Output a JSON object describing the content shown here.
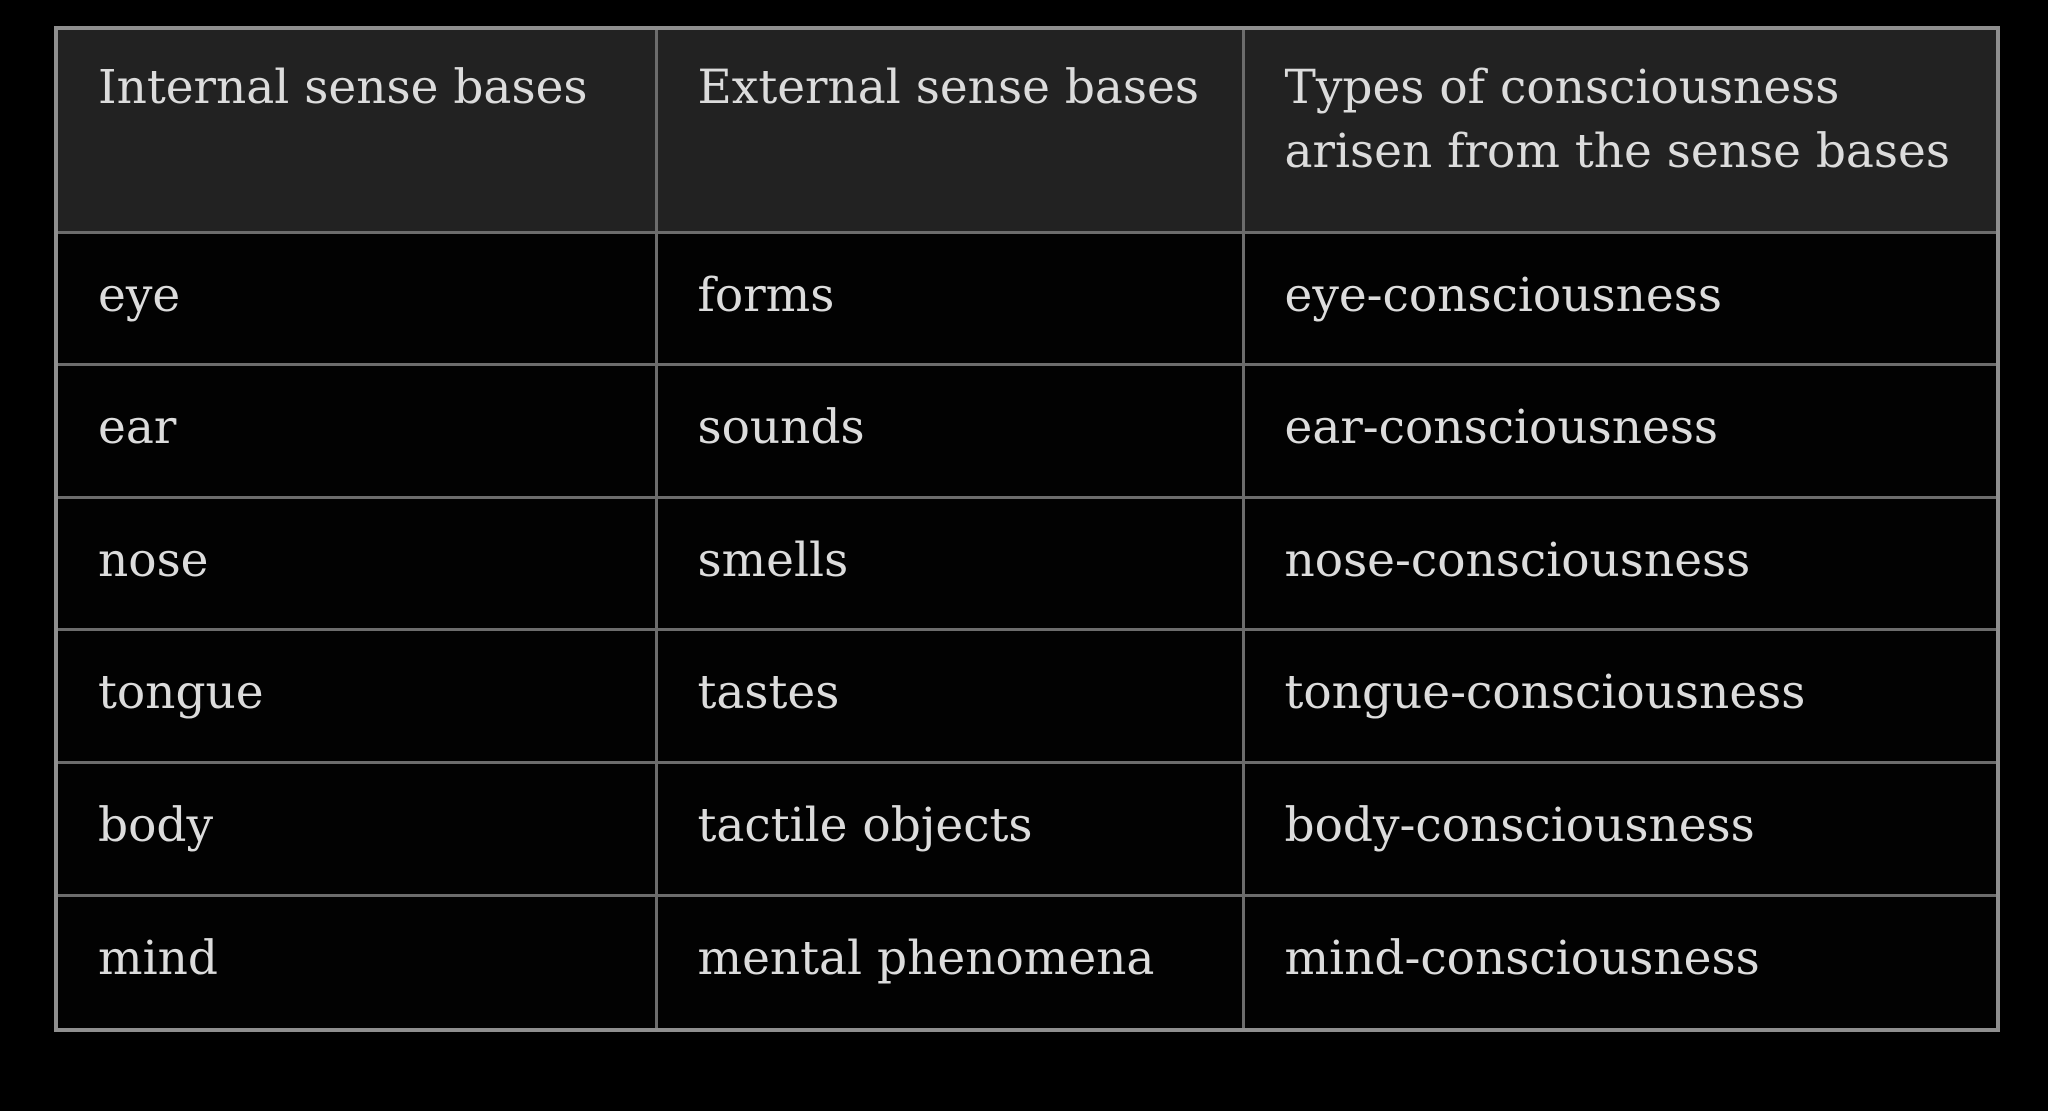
{
  "table": {
    "headers": [
      "Internal sense bases",
      "External sense bases",
      "Types of consciousness arisen from the sense bases"
    ],
    "rows": [
      [
        "eye",
        "forms",
        "eye-consciousness"
      ],
      [
        "ear",
        "sounds",
        "ear-consciousness"
      ],
      [
        "nose",
        "smells",
        "nose-consciousness"
      ],
      [
        "tongue",
        "tastes",
        "tongue-consciousness"
      ],
      [
        "body",
        "tactile objects",
        "body-consciousness"
      ],
      [
        "mind",
        "mental phenomena",
        "mind-consciousness"
      ]
    ]
  },
  "colors": {
    "background": "#000000",
    "header_background": "#222222",
    "border": "#8f8f8f",
    "text": "#dcdcdc"
  }
}
